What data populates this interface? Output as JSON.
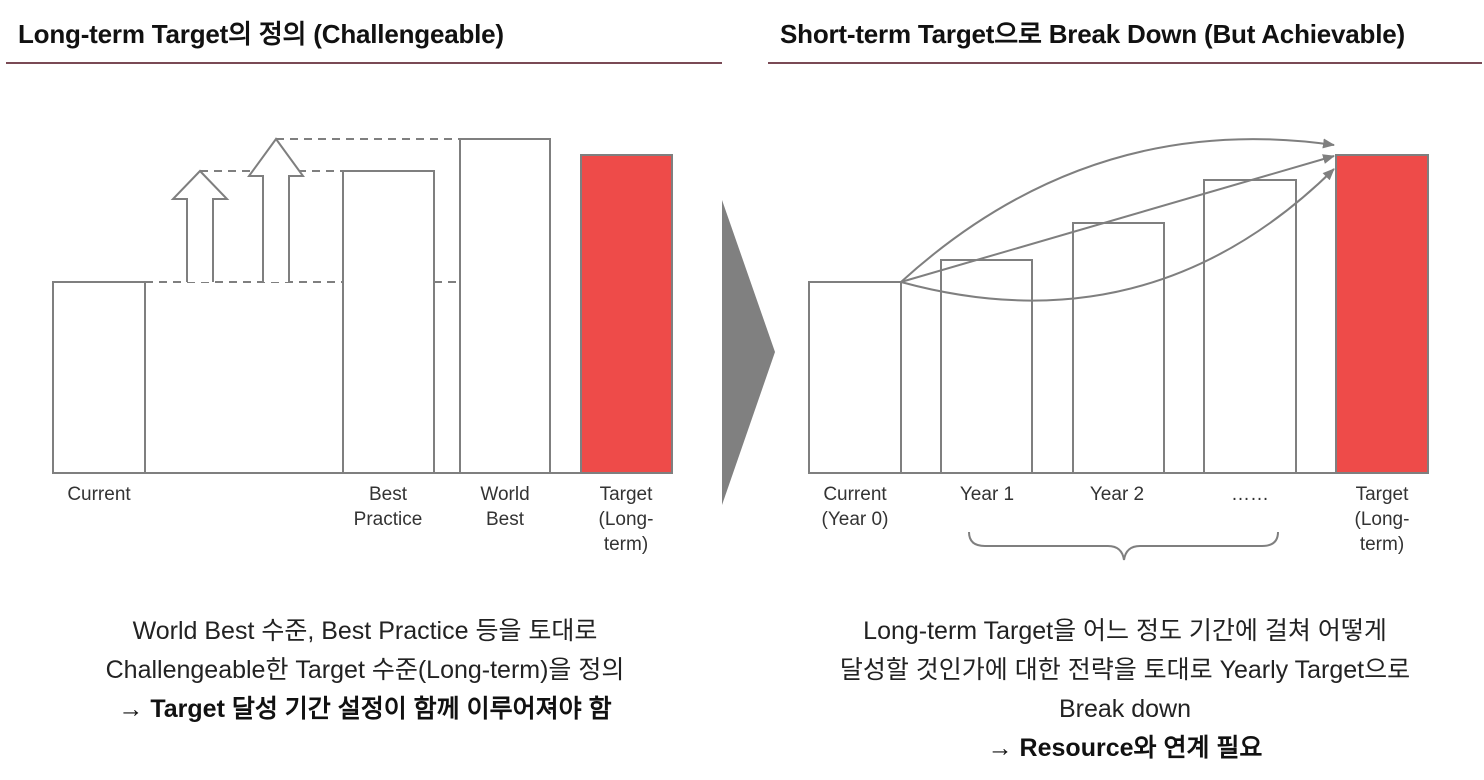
{
  "left_panel": {
    "title": "Long-term Target의 정의 (Challengeable)",
    "labels": {
      "current": "Current",
      "best_practice": [
        "Best",
        "Practice"
      ],
      "world_best": [
        "World",
        "Best"
      ],
      "target": [
        "Target",
        "(Long-",
        "term)"
      ]
    },
    "caption": {
      "line1": "World Best 수준, Best Practice 등을 토대로",
      "line2": "Challengeable한 Target 수준(Long-term)을 정의",
      "line3": "→ Target 달성 기간 설정이 함께 이루어져야 함"
    }
  },
  "right_panel": {
    "title": "Short-term Target으로 Break Down (But Achievable)",
    "labels": {
      "current": [
        "Current",
        "(Year 0)"
      ],
      "year1": "Year 1",
      "year2": "Year 2",
      "ellipsis": "……",
      "target": [
        "Target",
        "(Long-",
        "term)"
      ]
    },
    "caption": {
      "line1": "Long-term Target을 어느 정도 기간에 걸쳐 어떻게",
      "line2": "달성할 것인가에 대한 전략을 토대로 Yearly Target으로",
      "line3": "Break down",
      "line4": "→ Resource와 연계 필요"
    }
  },
  "colors": {
    "target_fill": "#ee4b49",
    "outline": "#7f7f7f",
    "arrow_fill": "#808080",
    "title_rule": "#7a4a55"
  }
}
